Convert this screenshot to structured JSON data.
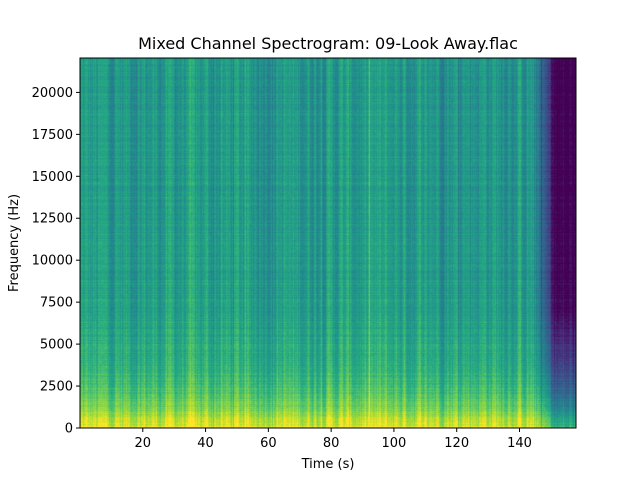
{
  "chart_data": {
    "type": "heatmap",
    "title": "Mixed Channel Spectrogram: 09-Look Away.flac",
    "xlabel": "Time (s)",
    "ylabel": "Frequency (Hz)",
    "xlim": [
      0,
      158
    ],
    "ylim": [
      0,
      22050
    ],
    "xticks": [
      20,
      40,
      60,
      80,
      100,
      120,
      140
    ],
    "yticks": [
      0,
      2500,
      5000,
      7500,
      10000,
      12500,
      15000,
      17500,
      20000
    ],
    "colormap": "viridis",
    "grid": false,
    "colorbar": false,
    "audio_end_s": 150
  }
}
